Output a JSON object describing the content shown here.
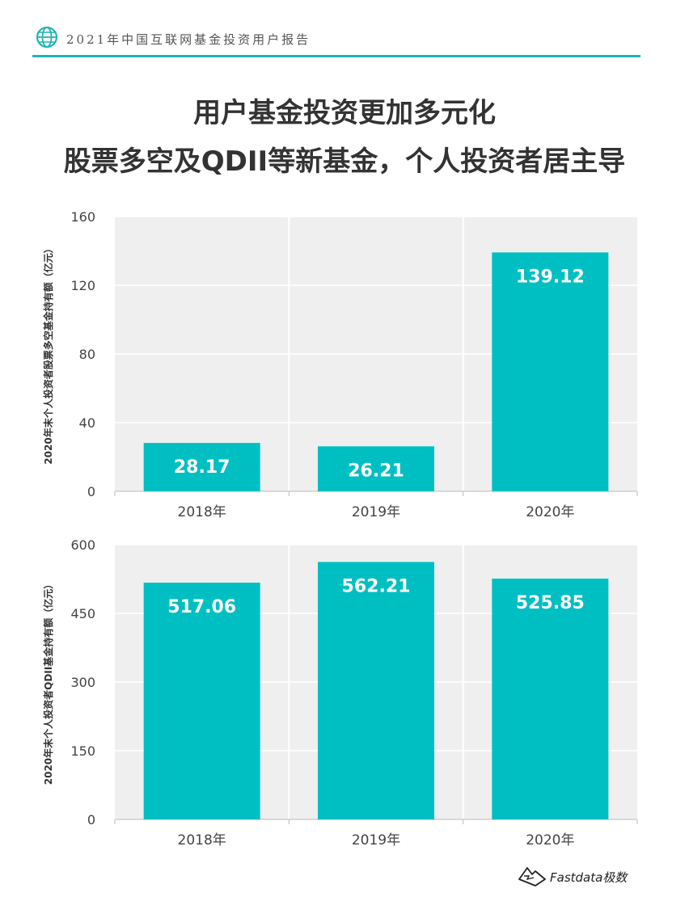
{
  "header": {
    "report_title": "2021年中国互联网基金投资用户报告"
  },
  "title": {
    "line1": "用户基金投资更加多元化",
    "line2": "股票多空及QDII等新基金，个人投资者居主导"
  },
  "colors": {
    "bar": "#00bfc2",
    "panel": "#efefef",
    "accent": "#1fb5b5"
  },
  "chart_data": [
    {
      "type": "bar",
      "ylabel": "2020年末个人投资者股票多空基金持有额（亿元）",
      "categories": [
        "2018年",
        "2019年",
        "2020年"
      ],
      "values": [
        28.17,
        26.21,
        139.12
      ],
      "value_labels": [
        "28.17",
        "26.21",
        "139.12"
      ],
      "yticks": [
        "0",
        "40",
        "80",
        "120",
        "160"
      ],
      "ylim": [
        0,
        160
      ],
      "grid": true
    },
    {
      "type": "bar",
      "ylabel": "2020年末个人投资者QDII基金持有额（亿元）",
      "categories": [
        "2018年",
        "2019年",
        "2020年"
      ],
      "values": [
        517.06,
        562.21,
        525.85
      ],
      "value_labels": [
        "517.06",
        "562.21",
        "525.85"
      ],
      "yticks": [
        "0",
        "150",
        "300",
        "450",
        "600"
      ],
      "ylim": [
        0,
        600
      ],
      "grid": true
    }
  ],
  "footer": {
    "brand": "Fastdata极数",
    "logo_icon": "mountain-logo-icon"
  }
}
